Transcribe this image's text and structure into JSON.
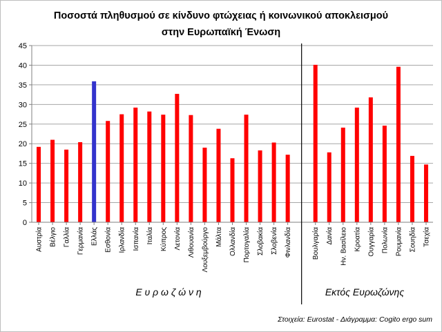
{
  "chart_data": {
    "type": "bar",
    "title_line1": "Ποσοστά πληθυσμού σε κίνδυνο φτώχειας ή κοινωνικού αποκλεισμού",
    "title_line2": "στην Ευρωπαϊκή Ένωση",
    "xlabel": "",
    "ylabel": "",
    "ylim": [
      0,
      45
    ],
    "yticks": [
      0,
      5,
      10,
      15,
      20,
      25,
      30,
      35,
      40,
      45
    ],
    "grid": true,
    "legend": "none",
    "colors": {
      "bar": "#ff0000",
      "highlight": "#3333cc",
      "grid": "#a6a6a6",
      "axis": "#7f7f7f",
      "divider": "#000000"
    },
    "groups": [
      {
        "label": "Ε υ ρ ω ζ ώ ν η",
        "categories": [
          "Αυστρία",
          "Βέλγιο",
          "Γαλλία",
          "Γερμανία",
          "Ελλάς",
          "Εσθονία",
          "Ιρλανδία",
          "Ισπανία",
          "Ιταλία",
          "Κύπρος",
          "Λετονία",
          "Λιθουανία",
          "Λουξεμβούργο",
          "Μάλτα",
          "Ολλανδία",
          "Πορτογαλία",
          "Σλοβακία",
          "Σλοβενία",
          "Φινλανδία"
        ],
        "values": [
          19.2,
          21.0,
          18.5,
          20.4,
          35.9,
          25.8,
          27.5,
          29.2,
          28.2,
          27.4,
          32.7,
          27.3,
          19.0,
          23.8,
          16.3,
          27.4,
          18.3,
          20.3,
          17.2
        ],
        "highlight_index": 4
      },
      {
        "label": "Εκτός Ευρωζώνης",
        "categories": [
          "Βουλγαρία",
          "Δανία",
          "Ην. Βασίλειο",
          "Κροατία",
          "Ουγγαρία",
          "Πολωνία",
          "Ρουμανία",
          "Σουηδία",
          "Τσεχία"
        ],
        "values": [
          40.1,
          17.8,
          24.1,
          29.2,
          31.8,
          24.6,
          39.6,
          16.9,
          14.7
        ]
      }
    ],
    "source": "Στοιχεία: Eurostat - Διάγραμμα: Cogito ergo sum"
  }
}
